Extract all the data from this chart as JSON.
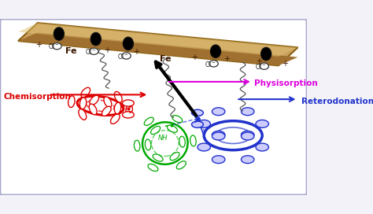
{
  "bg_color": "#f2f2f8",
  "border_color": "#aaaacc",
  "color_red": "#dd0000",
  "color_green": "#00aa00",
  "color_blue": "#2233cc",
  "color_magenta": "#dd00dd",
  "color_black": "#000000",
  "steel_top": "#c8a060",
  "steel_mid": "#d4b878",
  "steel_bot": "#b89040",
  "label_chemisorption": "Chemisorption",
  "label_reterodonation": "Reterodonation",
  "label_physisorption": "Physisorption"
}
